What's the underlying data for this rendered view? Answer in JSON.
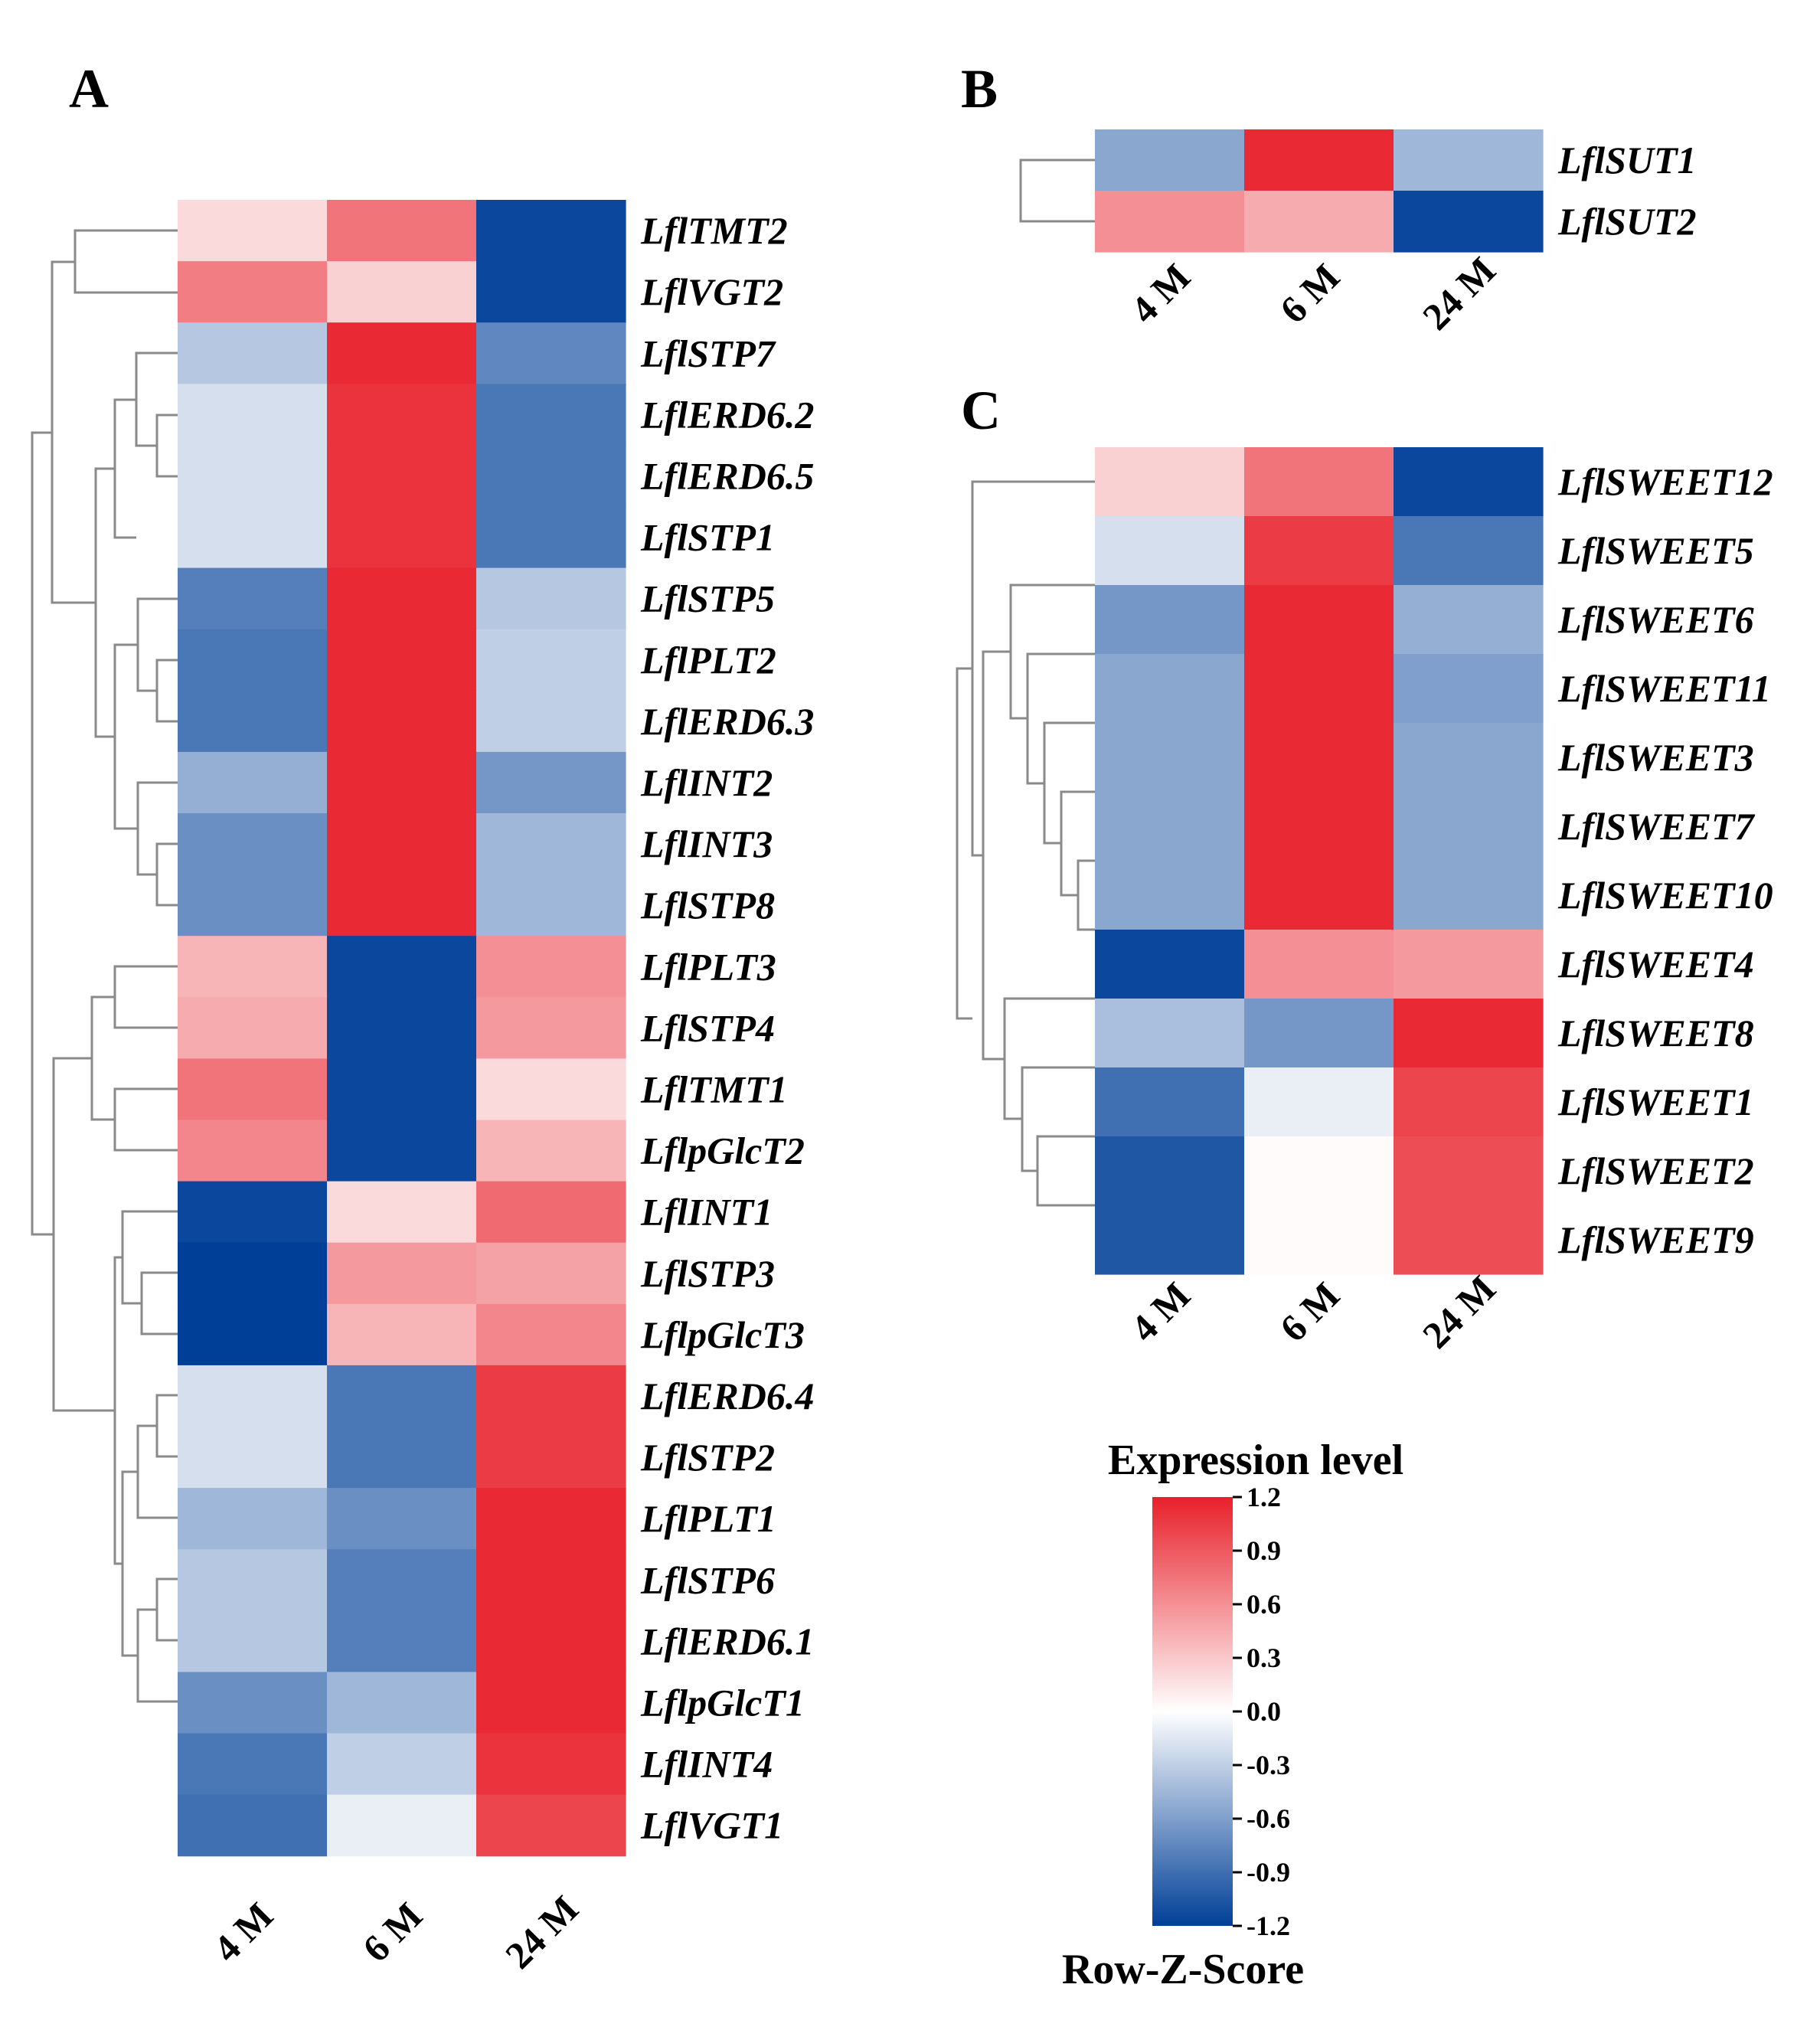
{
  "chart_data": [
    {
      "type": "heatmap",
      "panel": "A",
      "columns": [
        "4 M",
        "6 M",
        "24 M"
      ],
      "rows": [
        {
          "gene": "LflTMT2",
          "values": [
            0.2,
            0.75,
            -1.15
          ]
        },
        {
          "gene": "LflVGT2",
          "values": [
            0.7,
            0.25,
            -1.15
          ]
        },
        {
          "gene": "LflSTP7",
          "values": [
            -0.35,
            1.15,
            -0.75
          ]
        },
        {
          "gene": "LflERD6.2",
          "values": [
            -0.2,
            1.1,
            -0.85
          ]
        },
        {
          "gene": "LflERD6.5",
          "values": [
            -0.2,
            1.1,
            -0.85
          ]
        },
        {
          "gene": "LflSTP1",
          "values": [
            -0.2,
            1.1,
            -0.85
          ]
        },
        {
          "gene": "LflSTP5",
          "values": [
            -0.8,
            1.15,
            -0.35
          ]
        },
        {
          "gene": "LflPLT2",
          "values": [
            -0.85,
            1.15,
            -0.3
          ]
        },
        {
          "gene": "LflERD6.3",
          "values": [
            -0.85,
            1.15,
            -0.3
          ]
        },
        {
          "gene": "LflINT2",
          "values": [
            -0.5,
            1.15,
            -0.65
          ]
        },
        {
          "gene": "LflINT3",
          "values": [
            -0.7,
            1.15,
            -0.45
          ]
        },
        {
          "gene": "LflSTP8",
          "values": [
            -0.7,
            1.15,
            -0.45
          ]
        },
        {
          "gene": "LflPLT3",
          "values": [
            0.4,
            -1.15,
            0.6
          ]
        },
        {
          "gene": "LflSTP4",
          "values": [
            0.45,
            -1.15,
            0.55
          ]
        },
        {
          "gene": "LflTMT1",
          "values": [
            0.75,
            -1.15,
            0.2
          ]
        },
        {
          "gene": "LflpGlcT2",
          "values": [
            0.65,
            -1.15,
            0.4
          ]
        },
        {
          "gene": "LflINT1",
          "values": [
            -1.15,
            0.2,
            0.8
          ]
        },
        {
          "gene": "LflSTP3",
          "values": [
            -1.2,
            0.55,
            0.5
          ]
        },
        {
          "gene": "LflpGlcT3",
          "values": [
            -1.2,
            0.4,
            0.65
          ]
        },
        {
          "gene": "LflERD6.4",
          "values": [
            -0.2,
            -0.85,
            1.05
          ]
        },
        {
          "gene": "LflSTP2",
          "values": [
            -0.2,
            -0.85,
            1.05
          ]
        },
        {
          "gene": "LflPLT1",
          "values": [
            -0.45,
            -0.7,
            1.15
          ]
        },
        {
          "gene": "LflSTP6",
          "values": [
            -0.35,
            -0.8,
            1.15
          ]
        },
        {
          "gene": "LflERD6.1",
          "values": [
            -0.35,
            -0.8,
            1.15
          ]
        },
        {
          "gene": "LflpGlcT1",
          "values": [
            -0.7,
            -0.45,
            1.15
          ]
        },
        {
          "gene": "LflINT4",
          "values": [
            -0.85,
            -0.3,
            1.1
          ]
        },
        {
          "gene": "LflVGT1",
          "values": [
            -0.9,
            -0.1,
            1.0
          ]
        }
      ],
      "color_scale": {
        "min": -1.2,
        "max": 1.2,
        "low": "#003f98",
        "mid": "#ffffff",
        "high": "#e8202a"
      }
    },
    {
      "type": "heatmap",
      "panel": "B",
      "columns": [
        "4 M",
        "6 M",
        "24 M"
      ],
      "rows": [
        {
          "gene": "LflSUT1",
          "values": [
            -0.55,
            1.15,
            -0.45
          ]
        },
        {
          "gene": "LflSUT2",
          "values": [
            0.6,
            0.45,
            -1.15
          ]
        }
      ],
      "color_scale": {
        "min": -1.2,
        "max": 1.2,
        "low": "#003f98",
        "mid": "#ffffff",
        "high": "#e8202a"
      }
    },
    {
      "type": "heatmap",
      "panel": "C",
      "columns": [
        "4 M",
        "6 M",
        "24 M"
      ],
      "rows": [
        {
          "gene": "LflSWEET12",
          "values": [
            0.25,
            0.75,
            -1.15
          ]
        },
        {
          "gene": "LflSWEET5",
          "values": [
            -0.2,
            1.05,
            -0.85
          ]
        },
        {
          "gene": "LflSWEET6",
          "values": [
            -0.65,
            1.15,
            -0.5
          ]
        },
        {
          "gene": "LflSWEET11",
          "values": [
            -0.55,
            1.15,
            -0.6
          ]
        },
        {
          "gene": "LflSWEET3",
          "values": [
            -0.55,
            1.15,
            -0.55
          ]
        },
        {
          "gene": "LflSWEET7",
          "values": [
            -0.55,
            1.15,
            -0.55
          ]
        },
        {
          "gene": "LflSWEET10",
          "values": [
            -0.55,
            1.15,
            -0.55
          ]
        },
        {
          "gene": "LflSWEET4",
          "values": [
            -1.15,
            0.6,
            0.55
          ]
        },
        {
          "gene": "LflSWEET8",
          "values": [
            -0.4,
            -0.65,
            1.15
          ]
        },
        {
          "gene": "LflSWEET1",
          "values": [
            -0.9,
            -0.1,
            1.0
          ]
        },
        {
          "gene": "LflSWEET2",
          "values": [
            -1.05,
            0.02,
            0.95
          ]
        },
        {
          "gene": "LflSWEET9",
          "values": [
            -1.05,
            0.02,
            0.95
          ]
        }
      ],
      "color_scale": {
        "min": -1.2,
        "max": 1.2,
        "low": "#003f98",
        "mid": "#ffffff",
        "high": "#e8202a"
      }
    }
  ],
  "legend": {
    "title": "Expression level",
    "subtitle": "Row-Z-Score",
    "ticks": [
      "1.2",
      "0.9",
      "0.6",
      "0.3",
      "0.0",
      "-0.3",
      "-0.6",
      "-0.9",
      "-1.2"
    ]
  }
}
